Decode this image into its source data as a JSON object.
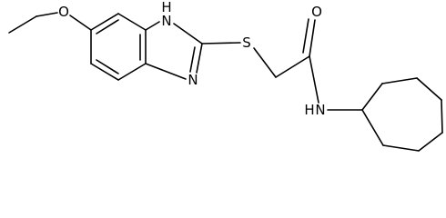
{
  "atoms": {
    "ether_oxygen": "O",
    "nh_ring_h": "H",
    "nh_ring_n": "N",
    "ring_n": "N",
    "sulfur": "S",
    "carbonyl_oxygen": "O",
    "amide_n": "N",
    "amide_h": "H"
  }
}
